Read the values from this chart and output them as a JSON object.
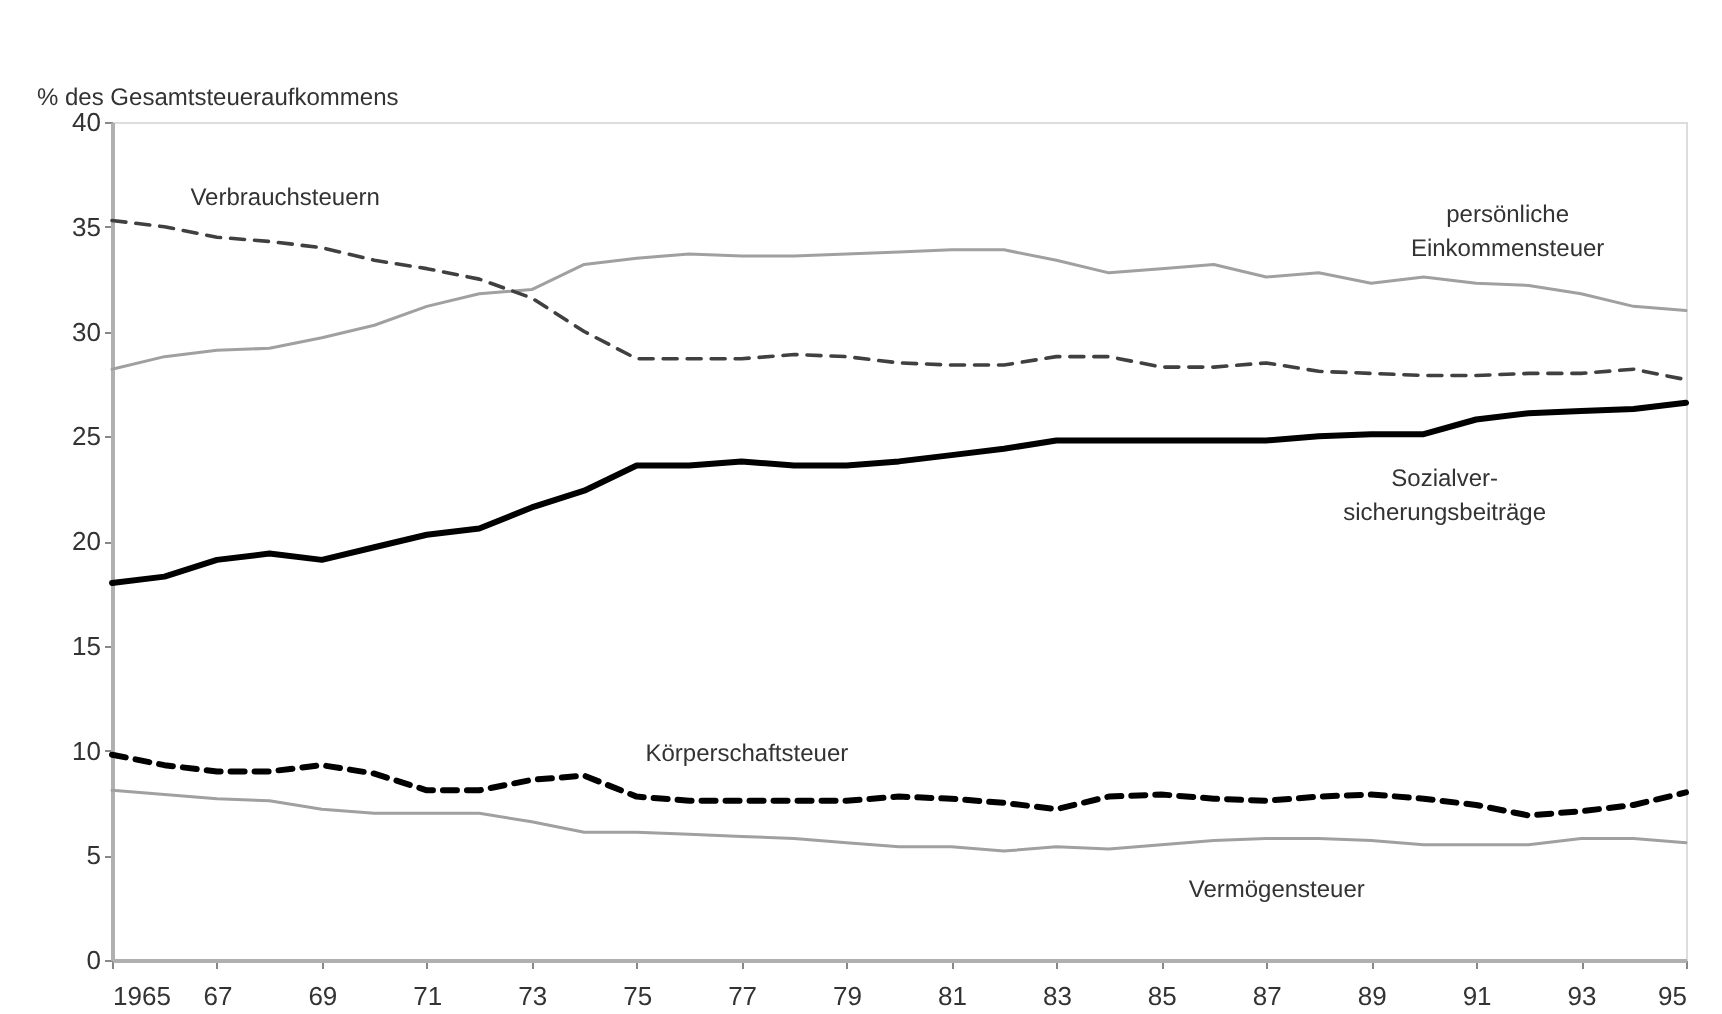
{
  "chart_data": {
    "type": "line",
    "ylabel": "% des Gesamtsteueraufkommens",
    "x": [
      1965,
      1966,
      1967,
      1968,
      1969,
      1970,
      1971,
      1972,
      1973,
      1974,
      1975,
      1976,
      1977,
      1978,
      1979,
      1980,
      1981,
      1982,
      1983,
      1984,
      1985,
      1986,
      1987,
      1988,
      1989,
      1990,
      1991,
      1992,
      1993,
      1994,
      1995
    ],
    "series": [
      {
        "name": "persönliche Einkommensteuer",
        "color": "#a0a0a0",
        "line_style": "solid",
        "values": [
          28.2,
          28.8,
          29.1,
          29.2,
          29.7,
          30.3,
          31.2,
          31.8,
          32.0,
          33.2,
          33.5,
          33.7,
          33.6,
          33.6,
          33.7,
          33.8,
          33.9,
          33.9,
          33.4,
          32.8,
          33.0,
          33.2,
          32.6,
          32.8,
          32.3,
          32.6,
          32.3,
          32.2,
          31.8,
          31.2,
          31.0
        ]
      },
      {
        "name": "Verbrauchsteuern",
        "color": "#404040",
        "line_style": "dashed",
        "values": [
          35.3,
          35.0,
          34.5,
          34.3,
          34.0,
          33.4,
          33.0,
          32.5,
          31.6,
          30.0,
          28.7,
          28.7,
          28.7,
          28.9,
          28.8,
          28.5,
          28.4,
          28.4,
          28.8,
          28.8,
          28.3,
          28.3,
          28.5,
          28.1,
          28.0,
          27.9,
          27.9,
          28.0,
          28.0,
          28.2,
          27.7
        ]
      },
      {
        "name": "Sozialver- sicherungsbeiträge",
        "color": "#000000",
        "line_style": "solid",
        "values": [
          18.0,
          18.3,
          19.1,
          19.4,
          19.1,
          19.7,
          20.3,
          20.6,
          21.6,
          22.4,
          23.6,
          23.6,
          23.8,
          23.6,
          23.6,
          23.8,
          24.1,
          24.4,
          24.8,
          24.8,
          24.8,
          24.8,
          24.8,
          25.0,
          25.1,
          25.1,
          25.8,
          26.1,
          26.2,
          26.3,
          26.6
        ]
      },
      {
        "name": "Körperschaftsteuer",
        "color": "#000000",
        "line_style": "dashed",
        "values": [
          9.8,
          9.3,
          9.0,
          9.0,
          9.3,
          8.9,
          8.1,
          8.1,
          8.6,
          8.8,
          7.8,
          7.6,
          7.6,
          7.6,
          7.6,
          7.8,
          7.7,
          7.5,
          7.2,
          7.8,
          7.9,
          7.7,
          7.6,
          7.8,
          7.9,
          7.7,
          7.4,
          6.9,
          7.1,
          7.4,
          8.0
        ]
      },
      {
        "name": "Vermögensteuer",
        "color": "#a0a0a0",
        "line_style": "solid",
        "values": [
          8.1,
          7.9,
          7.7,
          7.6,
          7.2,
          7.0,
          7.0,
          7.0,
          6.6,
          6.1,
          6.1,
          6.0,
          5.9,
          5.8,
          5.6,
          5.4,
          5.4,
          5.2,
          5.4,
          5.3,
          5.5,
          5.7,
          5.8,
          5.8,
          5.7,
          5.5,
          5.5,
          5.5,
          5.8,
          5.8,
          5.6
        ]
      }
    ],
    "xlim": [
      1965,
      1995
    ],
    "xticks": [
      1965,
      {
        "value": 1967,
        "label": "67"
      },
      {
        "value": 1969,
        "label": "69"
      },
      {
        "value": 1971,
        "label": "71"
      },
      {
        "value": 1973,
        "label": "73"
      },
      {
        "value": 1975,
        "label": "75"
      },
      {
        "value": 1977,
        "label": "77"
      },
      {
        "value": 1979,
        "label": "79"
      },
      {
        "value": 1981,
        "label": "81"
      },
      {
        "value": 1983,
        "label": "83"
      },
      {
        "value": 1985,
        "label": "85"
      },
      {
        "value": 1987,
        "label": "87"
      },
      {
        "value": 1989,
        "label": "89"
      },
      {
        "value": 1991,
        "label": "91"
      },
      {
        "value": 1993,
        "label": "93"
      },
      {
        "value": 1995,
        "label": "95"
      }
    ],
    "ylim": [
      0,
      40
    ],
    "yticks": [
      0,
      5,
      10,
      15,
      20,
      25,
      30,
      35,
      40
    ],
    "grid": false,
    "legend": false,
    "marker": "none"
  }
}
